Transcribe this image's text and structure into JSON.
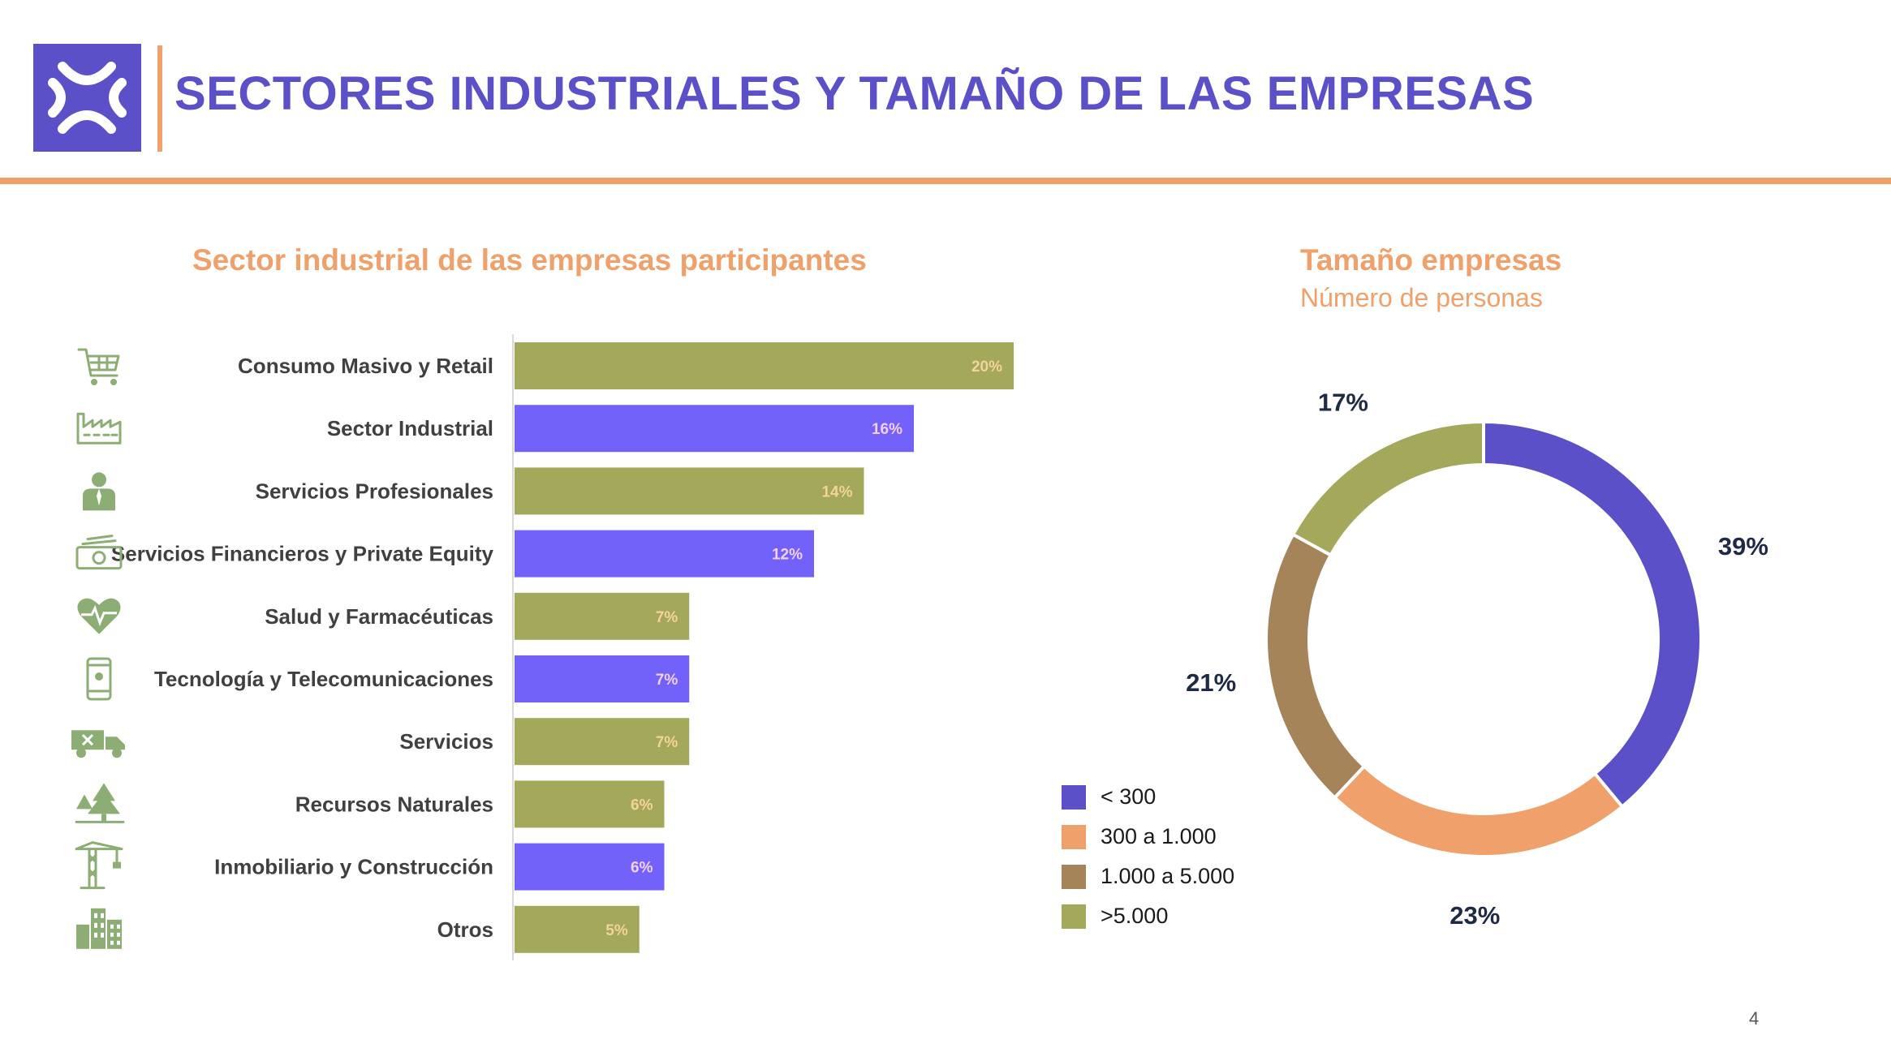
{
  "header": {
    "title": "SECTORES INDUSTRIALES Y TAMAÑO DE LAS EMPRESAS",
    "logo_icon": "brand-logo-icon"
  },
  "page_number": "4",
  "colors": {
    "purple": "#5c50c8",
    "bar_purple": "#7362fa",
    "olive": "#a3a85a",
    "orange": "#f0a06a",
    "brown": "#a5845a",
    "icon_green": "#8cae74",
    "bar_label_olive": "#f3d39a",
    "bar_label_purple": "#f3d0e6"
  },
  "chart_data": [
    {
      "type": "bar",
      "orientation": "horizontal",
      "title": "Sector industrial de las empresas participantes",
      "categories": [
        "Consumo Masivo y Retail",
        "Sector Industrial",
        "Servicios Profesionales",
        "Servicios Financieros y Private Equity",
        "Salud y Farmacéuticas",
        "Tecnología y Telecomunicaciones",
        "Servicios",
        "Recursos Naturales",
        "Inmobiliario y Construcción",
        "Otros"
      ],
      "values": [
        20,
        16,
        14,
        12,
        7,
        7,
        7,
        6,
        6,
        5
      ],
      "value_labels": [
        "20%",
        "16%",
        "14%",
        "12%",
        "7%",
        "7%",
        "7%",
        "6%",
        "6%",
        "5%"
      ],
      "bar_colors": [
        "olive",
        "purple",
        "olive",
        "purple",
        "olive",
        "purple",
        "olive",
        "olive",
        "purple",
        "olive"
      ],
      "category_icons": [
        "cart-icon",
        "factory-icon",
        "professional-icon",
        "money-icon",
        "heart-pulse-icon",
        "mobile-icon",
        "truck-icon",
        "trees-icon",
        "crane-icon",
        "buildings-icon"
      ],
      "xlim": [
        0,
        20
      ],
      "grid": false,
      "legend": "none"
    },
    {
      "type": "pie",
      "variant": "donut",
      "title": "Tamaño empresas",
      "subtitle": "Número de personas",
      "categories": [
        "< 300",
        "300 a 1.000",
        "1.000 a 5.000",
        ">5.000"
      ],
      "values": [
        39,
        23,
        21,
        17
      ],
      "value_labels": [
        "39%",
        "23%",
        "21%",
        "17%"
      ],
      "colors": [
        "#5c50c8",
        "#f0a06a",
        "#a5845a",
        "#a3a85a"
      ],
      "legend": "bottom-left"
    }
  ]
}
